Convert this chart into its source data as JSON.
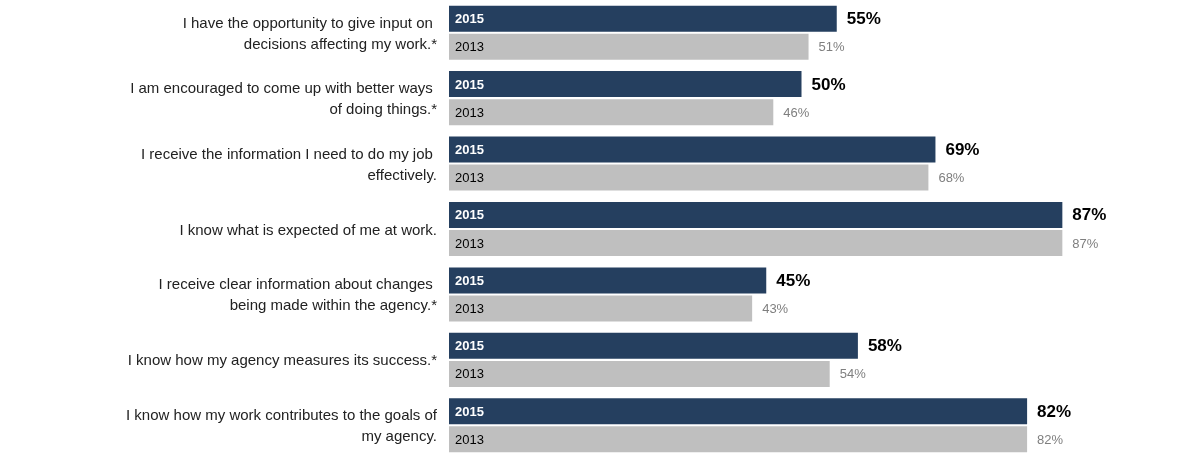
{
  "chart_data": {
    "type": "bar",
    "orientation": "horizontal",
    "grid": false,
    "tick_labels": "y",
    "categories": [
      "I have the opportunity to give input on decisions affecting my work.*",
      "I am encouraged to come up with better ways of doing things.*",
      "I receive the information I need to do my job effectively.",
      "I know what is expected of me at work.",
      "I receive clear information about changes being made within the agency.*",
      "I know how my agency measures its success.*",
      "I know how my work contributes to the goals of my agency."
    ],
    "series": [
      {
        "name": "2015",
        "color": "#253f5f",
        "values": [
          55,
          50,
          69,
          87,
          45,
          58,
          82
        ],
        "value_labels": [
          "55%",
          "50%",
          "69%",
          "87%",
          "45%",
          "58%",
          "82%"
        ]
      },
      {
        "name": "2013",
        "color": "#bfbfbf",
        "values": [
          51,
          46,
          68,
          87,
          43,
          54,
          82
        ],
        "value_labels": [
          "51%",
          "46%",
          "68%",
          "87%",
          "43%",
          "54%",
          "82%"
        ]
      }
    ]
  }
}
